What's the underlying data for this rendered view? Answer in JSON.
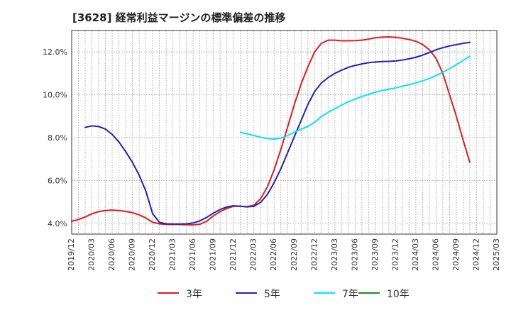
{
  "chart_data": {
    "type": "line",
    "title": "[3628]  経常利益マージンの標準偏差の推移",
    "xlabel": "",
    "ylabel": "",
    "x_ticks": [
      "2019/12",
      "2020/03",
      "2020/06",
      "2020/09",
      "2020/12",
      "2021/03",
      "2021/06",
      "2021/09",
      "2021/12",
      "2022/03",
      "2022/06",
      "2022/09",
      "2022/12",
      "2023/03",
      "2023/06",
      "2023/09",
      "2023/12",
      "2024/03",
      "2024/06",
      "2024/09",
      "2024/12",
      "2025/03"
    ],
    "y_ticks": [
      "4.0%",
      "6.0%",
      "8.0%",
      "10.0%",
      "12.0%"
    ],
    "y_tick_values": [
      4,
      6,
      8,
      10,
      12
    ],
    "ylim": [
      3.5,
      13.0
    ],
    "x_start": "2019/12",
    "x_end": "2025/03",
    "grid": true,
    "legend_position": "bottom",
    "series": [
      {
        "name": "3年",
        "color": "#e31a1c",
        "points": [
          [
            "2019/12",
            4.1
          ],
          [
            "2020/01",
            4.18
          ],
          [
            "2020/02",
            4.3
          ],
          [
            "2020/03",
            4.45
          ],
          [
            "2020/04",
            4.55
          ],
          [
            "2020/05",
            4.6
          ],
          [
            "2020/06",
            4.62
          ],
          [
            "2020/07",
            4.6
          ],
          [
            "2020/08",
            4.56
          ],
          [
            "2020/09",
            4.5
          ],
          [
            "2020/10",
            4.4
          ],
          [
            "2020/11",
            4.25
          ],
          [
            "2020/12",
            4.05
          ],
          [
            "2021/01",
            3.98
          ],
          [
            "2021/02",
            3.95
          ],
          [
            "2021/03",
            3.95
          ],
          [
            "2021/04",
            3.95
          ],
          [
            "2021/05",
            3.94
          ],
          [
            "2021/06",
            3.93
          ],
          [
            "2021/07",
            3.96
          ],
          [
            "2021/08",
            4.1
          ],
          [
            "2021/09",
            4.35
          ],
          [
            "2021/10",
            4.55
          ],
          [
            "2021/11",
            4.7
          ],
          [
            "2021/12",
            4.8
          ],
          [
            "2022/01",
            4.8
          ],
          [
            "2022/02",
            4.78
          ],
          [
            "2022/03",
            4.85
          ],
          [
            "2022/04",
            5.15
          ],
          [
            "2022/05",
            5.7
          ],
          [
            "2022/06",
            6.5
          ],
          [
            "2022/07",
            7.45
          ],
          [
            "2022/08",
            8.5
          ],
          [
            "2022/09",
            9.55
          ],
          [
            "2022/10",
            10.5
          ],
          [
            "2022/11",
            11.3
          ],
          [
            "2022/12",
            12.0
          ],
          [
            "2023/01",
            12.4
          ],
          [
            "2023/02",
            12.55
          ],
          [
            "2023/03",
            12.55
          ],
          [
            "2023/04",
            12.52
          ],
          [
            "2023/05",
            12.52
          ],
          [
            "2023/06",
            12.53
          ],
          [
            "2023/07",
            12.55
          ],
          [
            "2023/08",
            12.6
          ],
          [
            "2023/09",
            12.66
          ],
          [
            "2023/10",
            12.69
          ],
          [
            "2023/11",
            12.7
          ],
          [
            "2023/12",
            12.68
          ],
          [
            "2024/01",
            12.64
          ],
          [
            "2024/02",
            12.58
          ],
          [
            "2024/03",
            12.5
          ],
          [
            "2024/04",
            12.35
          ],
          [
            "2024/05",
            12.1
          ],
          [
            "2024/06",
            11.7
          ],
          [
            "2024/07",
            11.0
          ],
          [
            "2024/08",
            10.0
          ],
          [
            "2024/09",
            9.0
          ],
          [
            "2024/10",
            7.9
          ],
          [
            "2024/11",
            6.85
          ]
        ]
      },
      {
        "name": "5年",
        "color": "#1f1fbf",
        "points": [
          [
            "2020/02",
            8.48
          ],
          [
            "2020/03",
            8.55
          ],
          [
            "2020/04",
            8.52
          ],
          [
            "2020/05",
            8.4
          ],
          [
            "2020/06",
            8.15
          ],
          [
            "2020/07",
            7.8
          ],
          [
            "2020/08",
            7.35
          ],
          [
            "2020/09",
            6.85
          ],
          [
            "2020/10",
            6.25
          ],
          [
            "2020/11",
            5.5
          ],
          [
            "2020/12",
            4.45
          ],
          [
            "2021/01",
            4.05
          ],
          [
            "2021/02",
            3.98
          ],
          [
            "2021/03",
            3.97
          ],
          [
            "2021/04",
            3.97
          ],
          [
            "2021/05",
            3.98
          ],
          [
            "2021/06",
            4.02
          ],
          [
            "2021/07",
            4.12
          ],
          [
            "2021/08",
            4.28
          ],
          [
            "2021/09",
            4.48
          ],
          [
            "2021/10",
            4.65
          ],
          [
            "2021/11",
            4.77
          ],
          [
            "2021/12",
            4.82
          ],
          [
            "2022/01",
            4.8
          ],
          [
            "2022/02",
            4.77
          ],
          [
            "2022/03",
            4.8
          ],
          [
            "2022/04",
            4.98
          ],
          [
            "2022/05",
            5.35
          ],
          [
            "2022/06",
            5.9
          ],
          [
            "2022/07",
            6.55
          ],
          [
            "2022/08",
            7.3
          ],
          [
            "2022/09",
            8.05
          ],
          [
            "2022/10",
            8.8
          ],
          [
            "2022/11",
            9.55
          ],
          [
            "2022/12",
            10.15
          ],
          [
            "2023/01",
            10.55
          ],
          [
            "2023/02",
            10.8
          ],
          [
            "2023/03",
            11.0
          ],
          [
            "2023/04",
            11.15
          ],
          [
            "2023/05",
            11.28
          ],
          [
            "2023/06",
            11.37
          ],
          [
            "2023/07",
            11.44
          ],
          [
            "2023/08",
            11.5
          ],
          [
            "2023/09",
            11.53
          ],
          [
            "2023/10",
            11.55
          ],
          [
            "2023/11",
            11.56
          ],
          [
            "2023/12",
            11.58
          ],
          [
            "2024/01",
            11.62
          ],
          [
            "2024/02",
            11.68
          ],
          [
            "2024/03",
            11.75
          ],
          [
            "2024/04",
            11.85
          ],
          [
            "2024/05",
            11.97
          ],
          [
            "2024/06",
            12.1
          ],
          [
            "2024/07",
            12.2
          ],
          [
            "2024/08",
            12.28
          ],
          [
            "2024/09",
            12.34
          ],
          [
            "2024/10",
            12.4
          ],
          [
            "2024/11",
            12.45
          ]
        ]
      },
      {
        "name": "7年",
        "color": "#00e5ff",
        "points": [
          [
            "2022/01",
            8.25
          ],
          [
            "2022/02",
            8.18
          ],
          [
            "2022/03",
            8.1
          ],
          [
            "2022/04",
            8.02
          ],
          [
            "2022/05",
            7.96
          ],
          [
            "2022/06",
            7.93
          ],
          [
            "2022/07",
            7.98
          ],
          [
            "2022/08",
            8.1
          ],
          [
            "2022/09",
            8.25
          ],
          [
            "2022/10",
            8.4
          ],
          [
            "2022/11",
            8.52
          ],
          [
            "2022/12",
            8.72
          ],
          [
            "2023/01",
            8.98
          ],
          [
            "2023/02",
            9.18
          ],
          [
            "2023/03",
            9.35
          ],
          [
            "2023/04",
            9.52
          ],
          [
            "2023/05",
            9.67
          ],
          [
            "2023/06",
            9.8
          ],
          [
            "2023/07",
            9.92
          ],
          [
            "2023/08",
            10.02
          ],
          [
            "2023/09",
            10.12
          ],
          [
            "2023/10",
            10.2
          ],
          [
            "2023/11",
            10.26
          ],
          [
            "2023/12",
            10.32
          ],
          [
            "2024/01",
            10.4
          ],
          [
            "2024/02",
            10.47
          ],
          [
            "2024/03",
            10.55
          ],
          [
            "2024/04",
            10.65
          ],
          [
            "2024/05",
            10.76
          ],
          [
            "2024/06",
            10.9
          ],
          [
            "2024/07",
            11.05
          ],
          [
            "2024/08",
            11.22
          ],
          [
            "2024/09",
            11.4
          ],
          [
            "2024/10",
            11.6
          ],
          [
            "2024/11",
            11.8
          ]
        ]
      },
      {
        "name": "10年",
        "color": "#1a8a1a",
        "points": []
      }
    ]
  }
}
